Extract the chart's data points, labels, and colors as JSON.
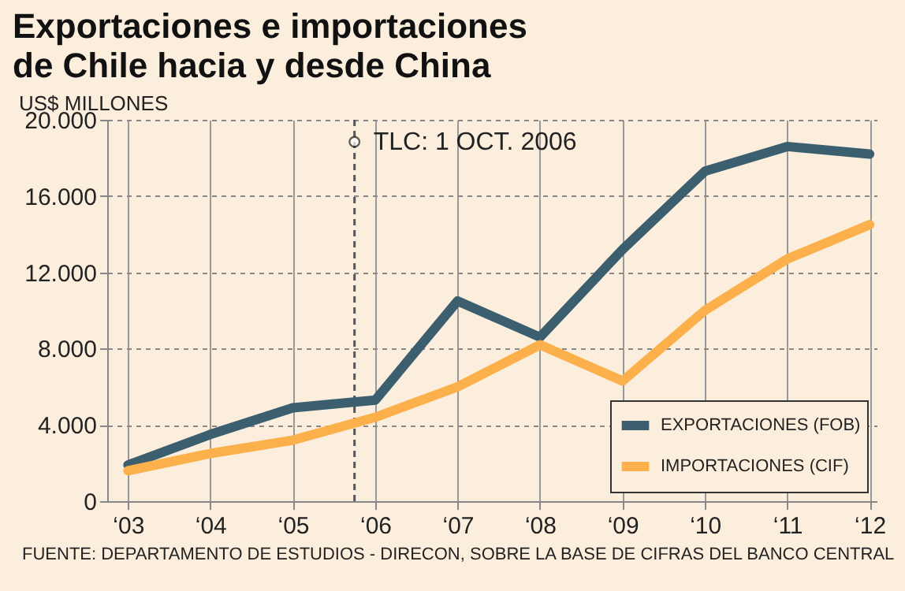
{
  "chart_data": {
    "type": "line",
    "title": "Exportaciones e importaciones de Chile hacia y desde China",
    "ylabel": "US$ MILLONES",
    "x": [
      "2003",
      "2004",
      "2005",
      "2006",
      "2007",
      "2008",
      "2009",
      "2010",
      "2011",
      "2012"
    ],
    "series": [
      {
        "name": "EXPORTACIONES (FOB)",
        "color": "#3b5f6f",
        "values": [
          1900,
          3500,
          4900,
          5300,
          10500,
          8600,
          13200,
          17300,
          18600,
          18200
        ]
      },
      {
        "name": "IMPORTACIONES (CIF)",
        "color": "#fbb04c",
        "values": [
          1600,
          2500,
          3200,
          4400,
          6000,
          8200,
          6300,
          10000,
          12700,
          14500
        ]
      }
    ],
    "xlim": [
      "2002-10",
      "2012-02"
    ],
    "xticks": [
      {
        "value": "2003",
        "label": "‘03"
      },
      {
        "value": "2004",
        "label": "‘04"
      },
      {
        "value": "2005",
        "label": "‘05"
      },
      {
        "value": "2006",
        "label": "‘06"
      },
      {
        "value": "2007",
        "label": "‘07"
      },
      {
        "value": "2008",
        "label": "‘08"
      },
      {
        "value": "2009",
        "label": "‘09"
      },
      {
        "value": "2010",
        "label": "‘10"
      },
      {
        "value": "2011",
        "label": "‘11"
      },
      {
        "value": "2012",
        "label": "‘12"
      }
    ],
    "ylim": [
      0,
      20000
    ],
    "yticks": [
      0,
      {
        "value": 4000,
        "label": "4.000"
      },
      {
        "value": 8000,
        "label": "8.000"
      },
      {
        "value": 12000,
        "label": "12.000"
      },
      {
        "value": 16000,
        "label": "16.000"
      },
      {
        "value": 20000,
        "label": "20.000"
      }
    ],
    "ref_lines": [
      {
        "axis": "x",
        "value": "2005-10",
        "label": "TLC: 1 OCT. 2006",
        "line_style": "dashed"
      }
    ],
    "annotations": [
      "FUENTE: DEPARTAMENTO DE ESTUDIOS - DIRECON, SOBRE LA BASE DE CIFRAS DEL BANCO CENTRAL"
    ],
    "grid": true,
    "legend": "bottom right"
  }
}
